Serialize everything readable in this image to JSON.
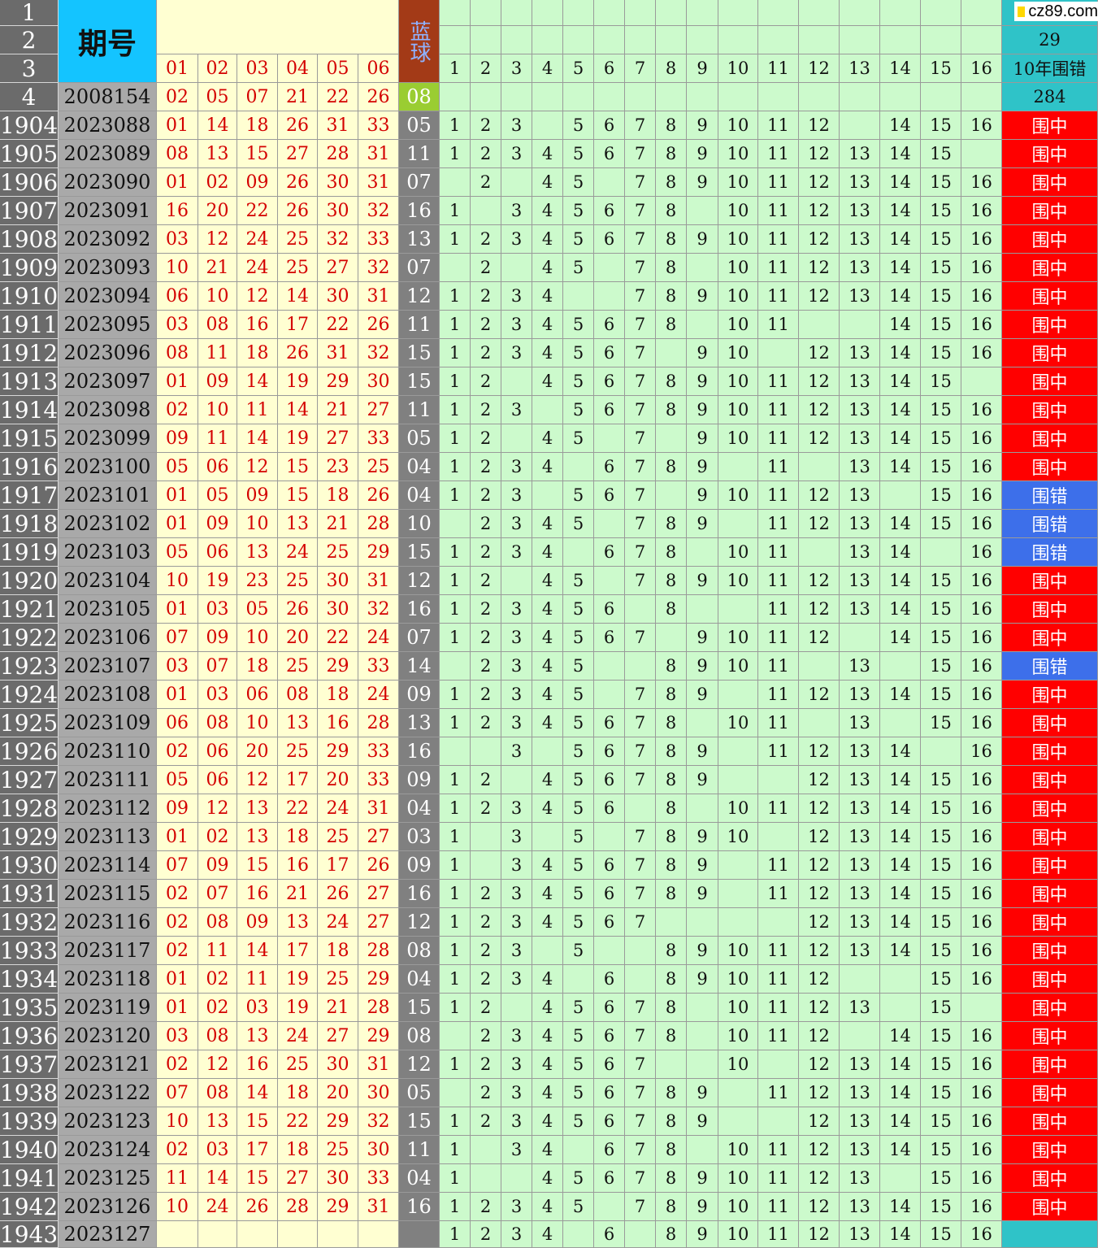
{
  "header": {
    "row_labels": [
      "1",
      "2",
      "3",
      "4"
    ],
    "issue_title": "期号",
    "blue_title": "蓝球",
    "red_cols": [
      "01",
      "02",
      "03",
      "04",
      "05",
      "06"
    ],
    "num_cols": [
      "1",
      "2",
      "3",
      "4",
      "5",
      "6",
      "7",
      "8",
      "9",
      "10",
      "11",
      "12",
      "13",
      "14",
      "15",
      "16"
    ],
    "stat_row1": "",
    "stat_row2": "29",
    "stat_row3": "10年围错",
    "stat_row4": "284",
    "ref_issue": "2008154",
    "ref_red": [
      "02",
      "05",
      "07",
      "21",
      "22",
      "26"
    ],
    "ref_blue": "08"
  },
  "watermark": "cz89.com",
  "rows": [
    {
      "n": "1904",
      "issue": "2023088",
      "red": [
        "01",
        "14",
        "18",
        "26",
        "31",
        "33"
      ],
      "blue": "05",
      "nums": [
        1,
        2,
        3,
        0,
        5,
        6,
        7,
        8,
        9,
        10,
        11,
        12,
        0,
        14,
        15,
        16
      ],
      "status": "围中"
    },
    {
      "n": "1905",
      "issue": "2023089",
      "red": [
        "08",
        "13",
        "15",
        "27",
        "28",
        "31"
      ],
      "blue": "11",
      "nums": [
        1,
        2,
        3,
        4,
        5,
        6,
        7,
        8,
        9,
        10,
        11,
        12,
        13,
        14,
        15,
        0
      ],
      "status": "围中"
    },
    {
      "n": "1906",
      "issue": "2023090",
      "red": [
        "01",
        "02",
        "09",
        "26",
        "30",
        "31"
      ],
      "blue": "07",
      "nums": [
        0,
        2,
        0,
        4,
        5,
        0,
        7,
        8,
        9,
        10,
        11,
        12,
        13,
        14,
        15,
        16
      ],
      "status": "围中"
    },
    {
      "n": "1907",
      "issue": "2023091",
      "red": [
        "16",
        "20",
        "22",
        "26",
        "30",
        "32"
      ],
      "blue": "16",
      "nums": [
        1,
        0,
        3,
        4,
        5,
        6,
        7,
        8,
        0,
        10,
        11,
        12,
        13,
        14,
        15,
        16
      ],
      "status": "围中"
    },
    {
      "n": "1908",
      "issue": "2023092",
      "red": [
        "03",
        "12",
        "24",
        "25",
        "32",
        "33"
      ],
      "blue": "13",
      "nums": [
        1,
        2,
        3,
        4,
        5,
        6,
        7,
        8,
        9,
        10,
        11,
        12,
        13,
        14,
        15,
        16
      ],
      "status": "围中"
    },
    {
      "n": "1909",
      "issue": "2023093",
      "red": [
        "10",
        "21",
        "24",
        "25",
        "27",
        "32"
      ],
      "blue": "07",
      "nums": [
        0,
        2,
        0,
        4,
        5,
        0,
        7,
        8,
        0,
        10,
        11,
        12,
        13,
        14,
        15,
        16
      ],
      "status": "围中"
    },
    {
      "n": "1910",
      "issue": "2023094",
      "red": [
        "06",
        "10",
        "12",
        "14",
        "30",
        "31"
      ],
      "blue": "12",
      "nums": [
        1,
        2,
        3,
        4,
        0,
        0,
        7,
        8,
        9,
        10,
        11,
        12,
        13,
        14,
        15,
        16
      ],
      "status": "围中"
    },
    {
      "n": "1911",
      "issue": "2023095",
      "red": [
        "03",
        "08",
        "16",
        "17",
        "22",
        "26"
      ],
      "blue": "11",
      "nums": [
        1,
        2,
        3,
        4,
        5,
        6,
        7,
        8,
        0,
        10,
        11,
        0,
        0,
        14,
        15,
        16
      ],
      "status": "围中"
    },
    {
      "n": "1912",
      "issue": "2023096",
      "red": [
        "08",
        "11",
        "18",
        "26",
        "31",
        "32"
      ],
      "blue": "15",
      "nums": [
        1,
        2,
        3,
        4,
        5,
        6,
        7,
        0,
        9,
        10,
        0,
        12,
        13,
        14,
        15,
        16
      ],
      "status": "围中"
    },
    {
      "n": "1913",
      "issue": "2023097",
      "red": [
        "01",
        "09",
        "14",
        "19",
        "29",
        "30"
      ],
      "blue": "15",
      "nums": [
        1,
        2,
        0,
        4,
        5,
        6,
        7,
        8,
        9,
        10,
        11,
        12,
        13,
        14,
        15,
        0
      ],
      "status": "围中"
    },
    {
      "n": "1914",
      "issue": "2023098",
      "red": [
        "02",
        "10",
        "11",
        "14",
        "21",
        "27"
      ],
      "blue": "11",
      "nums": [
        1,
        2,
        3,
        0,
        5,
        6,
        7,
        8,
        9,
        10,
        11,
        12,
        13,
        14,
        15,
        16
      ],
      "status": "围中"
    },
    {
      "n": "1915",
      "issue": "2023099",
      "red": [
        "09",
        "11",
        "14",
        "19",
        "27",
        "33"
      ],
      "blue": "05",
      "nums": [
        1,
        2,
        0,
        4,
        5,
        0,
        7,
        0,
        9,
        10,
        11,
        12,
        13,
        14,
        15,
        16
      ],
      "status": "围中"
    },
    {
      "n": "1916",
      "issue": "2023100",
      "red": [
        "05",
        "06",
        "12",
        "15",
        "23",
        "25"
      ],
      "blue": "04",
      "nums": [
        1,
        2,
        3,
        4,
        0,
        6,
        7,
        8,
        9,
        0,
        11,
        0,
        13,
        14,
        15,
        16
      ],
      "status": "围中"
    },
    {
      "n": "1917",
      "issue": "2023101",
      "red": [
        "01",
        "05",
        "09",
        "15",
        "18",
        "26"
      ],
      "blue": "04",
      "nums": [
        1,
        2,
        3,
        0,
        5,
        6,
        7,
        0,
        9,
        10,
        11,
        12,
        13,
        0,
        15,
        16
      ],
      "status": "围错"
    },
    {
      "n": "1918",
      "issue": "2023102",
      "red": [
        "01",
        "09",
        "10",
        "13",
        "21",
        "28"
      ],
      "blue": "10",
      "nums": [
        0,
        2,
        3,
        4,
        5,
        0,
        7,
        8,
        9,
        0,
        11,
        12,
        13,
        14,
        15,
        16
      ],
      "status": "围错"
    },
    {
      "n": "1919",
      "issue": "2023103",
      "red": [
        "05",
        "06",
        "13",
        "24",
        "25",
        "29"
      ],
      "blue": "15",
      "nums": [
        1,
        2,
        3,
        4,
        0,
        6,
        7,
        8,
        0,
        10,
        11,
        0,
        13,
        14,
        0,
        16
      ],
      "status": "围错"
    },
    {
      "n": "1920",
      "issue": "2023104",
      "red": [
        "10",
        "19",
        "23",
        "25",
        "30",
        "31"
      ],
      "blue": "12",
      "nums": [
        1,
        2,
        0,
        4,
        5,
        0,
        7,
        8,
        9,
        10,
        11,
        12,
        13,
        14,
        15,
        16
      ],
      "status": "围中"
    },
    {
      "n": "1921",
      "issue": "2023105",
      "red": [
        "01",
        "03",
        "05",
        "26",
        "30",
        "32"
      ],
      "blue": "16",
      "nums": [
        1,
        2,
        3,
        4,
        5,
        6,
        0,
        8,
        0,
        0,
        11,
        12,
        13,
        14,
        15,
        16
      ],
      "status": "围中"
    },
    {
      "n": "1922",
      "issue": "2023106",
      "red": [
        "07",
        "09",
        "10",
        "20",
        "22",
        "24"
      ],
      "blue": "07",
      "nums": [
        1,
        2,
        3,
        4,
        5,
        6,
        7,
        0,
        9,
        10,
        11,
        12,
        0,
        14,
        15,
        16
      ],
      "status": "围中"
    },
    {
      "n": "1923",
      "issue": "2023107",
      "red": [
        "03",
        "07",
        "18",
        "25",
        "29",
        "33"
      ],
      "blue": "14",
      "nums": [
        0,
        2,
        3,
        4,
        5,
        0,
        0,
        8,
        9,
        10,
        11,
        0,
        13,
        0,
        15,
        16
      ],
      "status": "围错"
    },
    {
      "n": "1924",
      "issue": "2023108",
      "red": [
        "01",
        "03",
        "06",
        "08",
        "18",
        "24"
      ],
      "blue": "09",
      "nums": [
        1,
        2,
        3,
        4,
        5,
        0,
        7,
        8,
        9,
        0,
        11,
        12,
        13,
        14,
        15,
        16
      ],
      "status": "围中"
    },
    {
      "n": "1925",
      "issue": "2023109",
      "red": [
        "06",
        "08",
        "10",
        "13",
        "16",
        "28"
      ],
      "blue": "13",
      "nums": [
        1,
        2,
        3,
        4,
        5,
        6,
        7,
        8,
        0,
        10,
        11,
        0,
        13,
        0,
        15,
        16
      ],
      "status": "围中"
    },
    {
      "n": "1926",
      "issue": "2023110",
      "red": [
        "02",
        "06",
        "20",
        "25",
        "29",
        "33"
      ],
      "blue": "16",
      "nums": [
        0,
        0,
        3,
        0,
        5,
        6,
        7,
        8,
        9,
        0,
        11,
        12,
        13,
        14,
        0,
        16
      ],
      "status": "围中"
    },
    {
      "n": "1927",
      "issue": "2023111",
      "red": [
        "05",
        "06",
        "12",
        "17",
        "20",
        "33"
      ],
      "blue": "09",
      "nums": [
        1,
        2,
        0,
        4,
        5,
        6,
        7,
        8,
        9,
        0,
        0,
        12,
        13,
        14,
        15,
        16
      ],
      "status": "围中"
    },
    {
      "n": "1928",
      "issue": "2023112",
      "red": [
        "09",
        "12",
        "13",
        "22",
        "24",
        "31"
      ],
      "blue": "04",
      "nums": [
        1,
        2,
        3,
        4,
        5,
        6,
        0,
        8,
        0,
        10,
        11,
        12,
        13,
        14,
        15,
        16
      ],
      "status": "围中"
    },
    {
      "n": "1929",
      "issue": "2023113",
      "red": [
        "01",
        "02",
        "13",
        "18",
        "25",
        "27"
      ],
      "blue": "03",
      "nums": [
        1,
        0,
        3,
        0,
        5,
        0,
        7,
        8,
        9,
        10,
        0,
        12,
        13,
        14,
        15,
        16
      ],
      "status": "围中"
    },
    {
      "n": "1930",
      "issue": "2023114",
      "red": [
        "07",
        "09",
        "15",
        "16",
        "17",
        "26"
      ],
      "blue": "09",
      "nums": [
        1,
        0,
        3,
        4,
        5,
        6,
        7,
        8,
        9,
        0,
        11,
        12,
        13,
        14,
        15,
        16
      ],
      "status": "围中"
    },
    {
      "n": "1931",
      "issue": "2023115",
      "red": [
        "02",
        "07",
        "16",
        "21",
        "26",
        "27"
      ],
      "blue": "16",
      "nums": [
        1,
        2,
        3,
        4,
        5,
        6,
        7,
        8,
        9,
        0,
        11,
        12,
        13,
        14,
        15,
        16
      ],
      "status": "围中"
    },
    {
      "n": "1932",
      "issue": "2023116",
      "red": [
        "02",
        "08",
        "09",
        "13",
        "24",
        "27"
      ],
      "blue": "12",
      "nums": [
        1,
        2,
        3,
        4,
        5,
        6,
        7,
        0,
        0,
        0,
        0,
        12,
        13,
        14,
        15,
        16
      ],
      "status": "围中"
    },
    {
      "n": "1933",
      "issue": "2023117",
      "red": [
        "02",
        "11",
        "14",
        "17",
        "18",
        "28"
      ],
      "blue": "08",
      "nums": [
        1,
        2,
        3,
        0,
        5,
        0,
        0,
        8,
        9,
        10,
        11,
        12,
        13,
        14,
        15,
        16
      ],
      "status": "围中"
    },
    {
      "n": "1934",
      "issue": "2023118",
      "red": [
        "01",
        "02",
        "11",
        "19",
        "25",
        "29"
      ],
      "blue": "04",
      "nums": [
        1,
        2,
        3,
        4,
        0,
        6,
        0,
        8,
        9,
        10,
        11,
        12,
        0,
        0,
        15,
        16
      ],
      "status": "围中"
    },
    {
      "n": "1935",
      "issue": "2023119",
      "red": [
        "01",
        "02",
        "03",
        "19",
        "21",
        "28"
      ],
      "blue": "15",
      "nums": [
        1,
        2,
        0,
        4,
        5,
        6,
        7,
        8,
        0,
        10,
        11,
        12,
        13,
        0,
        15,
        0
      ],
      "status": "围中"
    },
    {
      "n": "1936",
      "issue": "2023120",
      "red": [
        "03",
        "08",
        "13",
        "24",
        "27",
        "29"
      ],
      "blue": "08",
      "nums": [
        0,
        2,
        3,
        4,
        5,
        6,
        7,
        8,
        0,
        10,
        11,
        12,
        0,
        14,
        15,
        16
      ],
      "status": "围中"
    },
    {
      "n": "1937",
      "issue": "2023121",
      "red": [
        "02",
        "12",
        "16",
        "25",
        "30",
        "31"
      ],
      "blue": "12",
      "nums": [
        1,
        2,
        3,
        4,
        5,
        6,
        7,
        0,
        0,
        10,
        0,
        12,
        13,
        14,
        15,
        16
      ],
      "status": "围中"
    },
    {
      "n": "1938",
      "issue": "2023122",
      "red": [
        "07",
        "08",
        "14",
        "18",
        "20",
        "30"
      ],
      "blue": "05",
      "nums": [
        0,
        2,
        3,
        4,
        5,
        6,
        7,
        8,
        9,
        0,
        11,
        12,
        13,
        14,
        15,
        16
      ],
      "status": "围中"
    },
    {
      "n": "1939",
      "issue": "2023123",
      "red": [
        "10",
        "13",
        "15",
        "22",
        "29",
        "32"
      ],
      "blue": "15",
      "nums": [
        1,
        2,
        3,
        4,
        5,
        6,
        7,
        8,
        9,
        0,
        0,
        12,
        13,
        14,
        15,
        16
      ],
      "status": "围中"
    },
    {
      "n": "1940",
      "issue": "2023124",
      "red": [
        "02",
        "03",
        "17",
        "18",
        "25",
        "30"
      ],
      "blue": "11",
      "nums": [
        1,
        0,
        3,
        4,
        0,
        6,
        7,
        8,
        0,
        10,
        11,
        12,
        13,
        14,
        15,
        16
      ],
      "status": "围中"
    },
    {
      "n": "1941",
      "issue": "2023125",
      "red": [
        "11",
        "14",
        "15",
        "27",
        "30",
        "33"
      ],
      "blue": "04",
      "nums": [
        1,
        0,
        0,
        4,
        5,
        6,
        7,
        8,
        9,
        10,
        11,
        12,
        13,
        0,
        15,
        16
      ],
      "status": "围中"
    },
    {
      "n": "1942",
      "issue": "2023126",
      "red": [
        "10",
        "24",
        "26",
        "28",
        "29",
        "31"
      ],
      "blue": "16",
      "nums": [
        1,
        2,
        3,
        4,
        5,
        0,
        7,
        8,
        9,
        10,
        11,
        12,
        13,
        14,
        15,
        16
      ],
      "status": "围中"
    },
    {
      "n": "1943",
      "issue": "2023127",
      "red": [
        "",
        "",
        "",
        "",
        "",
        ""
      ],
      "blue": "",
      "nums": [
        1,
        2,
        3,
        4,
        0,
        6,
        0,
        8,
        9,
        10,
        11,
        12,
        13,
        14,
        15,
        16
      ],
      "status": ""
    }
  ],
  "colors": {
    "hit": "#ff0000",
    "miss": "#3d6fea",
    "stat_cell": "#2fc3c8"
  }
}
